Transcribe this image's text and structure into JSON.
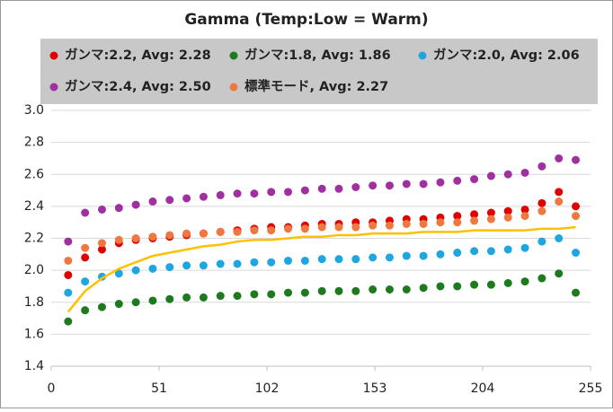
{
  "chart_data": {
    "type": "scatter",
    "title": "Gamma (Temp:Low = Warm)",
    "x": [
      8,
      16,
      24,
      32,
      40,
      48,
      56,
      64,
      72,
      80,
      88,
      96,
      104,
      112,
      120,
      128,
      136,
      144,
      152,
      160,
      168,
      176,
      184,
      192,
      200,
      208,
      216,
      224,
      232,
      240,
      248
    ],
    "series": [
      {
        "name": "ガンマ:2.2, Avg: 2.28",
        "color": "#e00000",
        "values": [
          1.97,
          2.08,
          2.13,
          2.17,
          2.19,
          2.2,
          2.21,
          2.22,
          2.23,
          2.24,
          2.25,
          2.26,
          2.27,
          2.27,
          2.28,
          2.29,
          2.29,
          2.3,
          2.3,
          2.31,
          2.32,
          2.32,
          2.33,
          2.34,
          2.35,
          2.36,
          2.37,
          2.38,
          2.42,
          2.49,
          2.4
        ]
      },
      {
        "name": "ガンマ:1.8, Avg: 1.86",
        "color": "#1e7a1e",
        "values": [
          1.68,
          1.75,
          1.77,
          1.79,
          1.8,
          1.81,
          1.82,
          1.83,
          1.83,
          1.84,
          1.84,
          1.85,
          1.85,
          1.86,
          1.86,
          1.87,
          1.87,
          1.87,
          1.88,
          1.88,
          1.88,
          1.89,
          1.9,
          1.9,
          1.91,
          1.91,
          1.92,
          1.93,
          1.95,
          1.98,
          1.86
        ]
      },
      {
        "name": "ガンマ:2.0, Avg: 2.06",
        "color": "#1ea6e0",
        "values": [
          1.86,
          1.93,
          1.96,
          1.98,
          2.0,
          2.01,
          2.02,
          2.03,
          2.03,
          2.04,
          2.04,
          2.05,
          2.05,
          2.06,
          2.06,
          2.07,
          2.07,
          2.07,
          2.08,
          2.08,
          2.09,
          2.09,
          2.1,
          2.11,
          2.12,
          2.12,
          2.13,
          2.14,
          2.18,
          2.2,
          2.11
        ]
      },
      {
        "name": "ガンマ:2.4, Avg: 2.50",
        "color": "#a030a0",
        "values": [
          2.18,
          2.36,
          2.38,
          2.39,
          2.41,
          2.43,
          2.44,
          2.45,
          2.46,
          2.47,
          2.48,
          2.48,
          2.49,
          2.49,
          2.5,
          2.51,
          2.51,
          2.52,
          2.53,
          2.53,
          2.54,
          2.54,
          2.55,
          2.56,
          2.57,
          2.59,
          2.6,
          2.61,
          2.65,
          2.7,
          2.69
        ]
      },
      {
        "name": "標準モード, Avg: 2.27",
        "color": "#f07840",
        "values": [
          2.06,
          2.14,
          2.17,
          2.19,
          2.2,
          2.21,
          2.22,
          2.23,
          2.23,
          2.24,
          2.24,
          2.25,
          2.25,
          2.26,
          2.26,
          2.27,
          2.27,
          2.27,
          2.28,
          2.28,
          2.29,
          2.29,
          2.3,
          2.3,
          2.31,
          2.32,
          2.33,
          2.34,
          2.37,
          2.43,
          2.34
        ]
      },
      {
        "type": "line",
        "color": "#ffc000",
        "values": [
          1.74,
          1.87,
          1.95,
          2.01,
          2.05,
          2.09,
          2.11,
          2.13,
          2.15,
          2.16,
          2.18,
          2.19,
          2.19,
          2.2,
          2.21,
          2.21,
          2.22,
          2.22,
          2.23,
          2.23,
          2.23,
          2.24,
          2.24,
          2.24,
          2.25,
          2.25,
          2.25,
          2.25,
          2.26,
          2.26,
          2.27
        ]
      }
    ],
    "xlim": [
      0,
      255
    ],
    "xticks": [
      0,
      51,
      102,
      153,
      204,
      255
    ],
    "ylim": [
      1.4,
      3.0
    ],
    "yticks": [
      1.4,
      1.6,
      1.8,
      {
        "value": 2,
        "label": "2.0"
      },
      2.2,
      2.4,
      2.6,
      2.8,
      {
        "value": 3,
        "label": "3.0"
      }
    ],
    "grid": true,
    "legend": "top"
  }
}
